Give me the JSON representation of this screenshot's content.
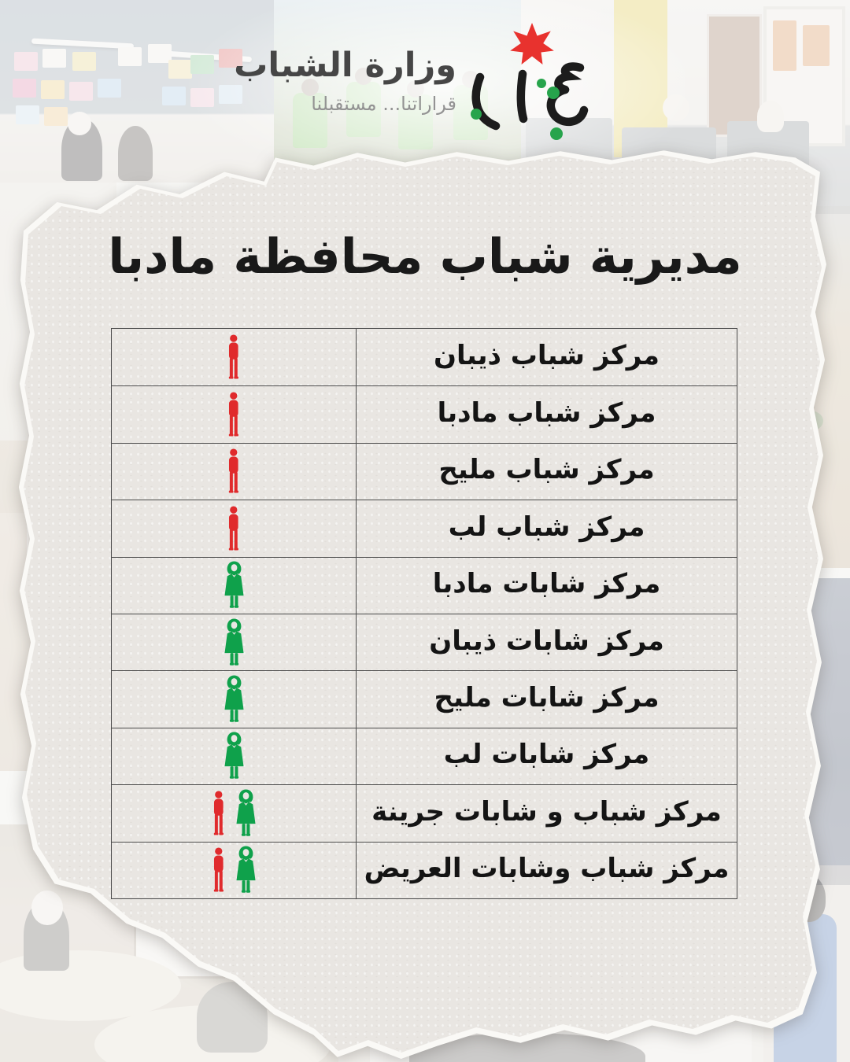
{
  "header": {
    "ministry_name": "وزارة الشباب",
    "tagline": "قراراتنا... مستقبلنا",
    "logo_icons": {
      "star": "jordan-seven-pointed-star-icon",
      "calligraphy": "youth-arabic-calligraphy-mark",
      "dots": "green-accent-dots"
    }
  },
  "title": "مديرية شباب محافظة مادبا",
  "table": {
    "rows": [
      {
        "name": "مركز شباب ذيبان",
        "icons": [
          "male"
        ]
      },
      {
        "name": "مركز شباب مادبا",
        "icons": [
          "male"
        ]
      },
      {
        "name": "مركز شباب مليح",
        "icons": [
          "male"
        ]
      },
      {
        "name": "مركز شباب لب",
        "icons": [
          "male"
        ]
      },
      {
        "name": "مركز شابات مادبا",
        "icons": [
          "female"
        ]
      },
      {
        "name": "مركز شابات ذيبان",
        "icons": [
          "female"
        ]
      },
      {
        "name": "مركز شابات مليح",
        "icons": [
          "female"
        ]
      },
      {
        "name": "مركز شابات لب",
        "icons": [
          "female"
        ]
      },
      {
        "name": "مركز شباب و شابات جرينة",
        "icons": [
          "male",
          "female"
        ]
      },
      {
        "name": "مركز شباب وشابات العريض",
        "icons": [
          "male",
          "female"
        ]
      }
    ],
    "icon_colors": {
      "male": "#e02a2c",
      "female": "#0fa14b"
    }
  },
  "colors": {
    "star_red": "#e8322e",
    "logo_green": "#27a44c",
    "logo_ink": "#1c1c1c",
    "paper": "#e9e6e2",
    "text": "#141414"
  }
}
